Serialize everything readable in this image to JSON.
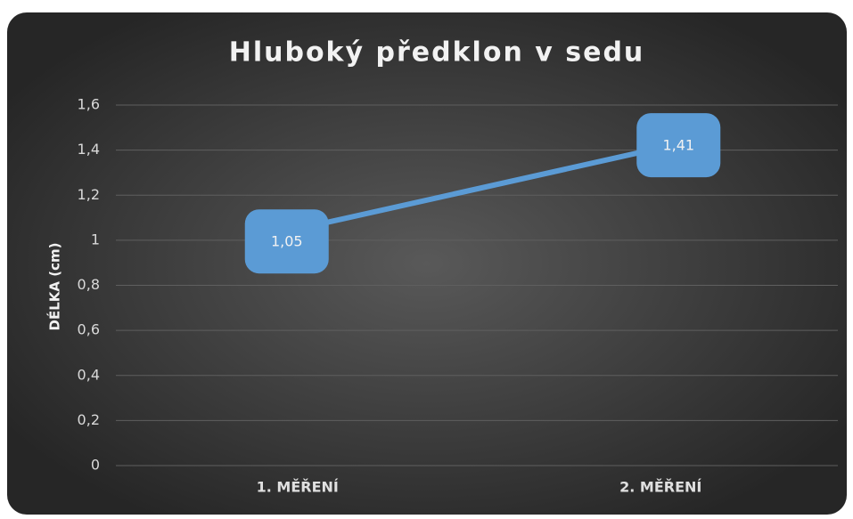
{
  "chart_data": {
    "type": "line",
    "title": "Hluboký předklon v sedu",
    "y_label": "DÉLKA (cm)",
    "categories": [
      "1. MĚŘENÍ",
      "2. MĚŘENÍ"
    ],
    "values": [
      1.05,
      1.41
    ],
    "value_labels": [
      "1,05",
      "1,41"
    ],
    "color": "#5b9bd5",
    "ylim": [
      0,
      1.6
    ],
    "yticks": [
      0,
      {
        "value": 0.2,
        "label": "0,2"
      },
      {
        "value": 0.4,
        "label": "0,4"
      },
      {
        "value": 0.6,
        "label": "0,6"
      },
      {
        "value": 0.8,
        "label": "0,8"
      },
      1,
      {
        "value": 1.2,
        "label": "1,2"
      },
      {
        "value": 1.4,
        "label": "1,4"
      },
      {
        "value": 1.6,
        "label": "1,6"
      }
    ],
    "grid": true
  }
}
